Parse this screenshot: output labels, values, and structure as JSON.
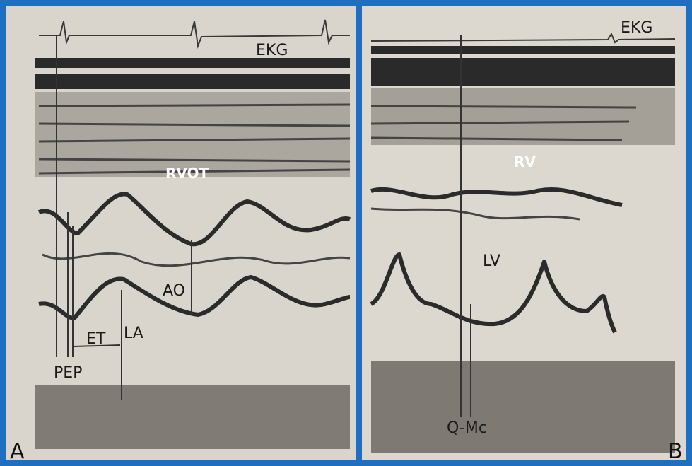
{
  "panels": [
    {
      "letter": "A",
      "labels": [
        "EKG",
        "RVOT",
        "AO",
        "LA",
        "ET",
        "PEP"
      ]
    },
    {
      "letter": "B",
      "labels": [
        "EKG",
        "RV",
        "LV",
        "Q-Mc"
      ]
    }
  ]
}
